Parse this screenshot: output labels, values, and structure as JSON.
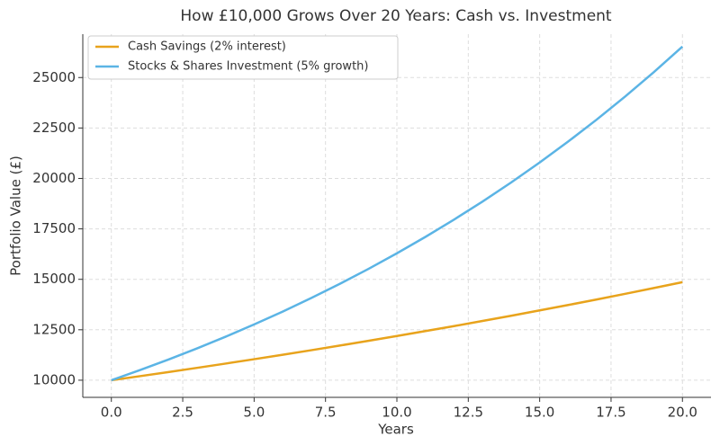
{
  "chart_data": {
    "type": "line",
    "title": "How £10,000 Grows Over 20 Years: Cash vs. Investment",
    "x_label": "Years",
    "y_label": "Portfolio Value (£)",
    "x": [
      0,
      1,
      2,
      3,
      4,
      5,
      6,
      7,
      8,
      9,
      10,
      11,
      12,
      13,
      14,
      15,
      16,
      17,
      18,
      19,
      20
    ],
    "series": [
      {
        "name": "Cash Savings (2% interest)",
        "color": "#e8a31c",
        "values": [
          10000,
          10200,
          10404,
          10612,
          10824,
          11041,
          11262,
          11487,
          11717,
          11951,
          12190,
          12434,
          12682,
          12936,
          13195,
          13459,
          13728,
          14002,
          14282,
          14568,
          14859
        ]
      },
      {
        "name": "Stocks & Shares Investment (5% growth)",
        "color": "#5bb4e5",
        "values": [
          10000,
          10500,
          11025,
          11576,
          12155,
          12763,
          13401,
          14071,
          14775,
          15513,
          16289,
          17103,
          17959,
          18856,
          19799,
          20789,
          21829,
          22920,
          24066,
          25270,
          26533
        ]
      }
    ],
    "xlim": [
      -1,
      21
    ],
    "xticks": [
      {
        "value": 0,
        "label": "0.0"
      },
      2.5,
      {
        "value": 5,
        "label": "5.0"
      },
      7.5,
      {
        "value": 10,
        "label": "10.0"
      },
      12.5,
      {
        "value": 15,
        "label": "15.0"
      },
      17.5,
      {
        "value": 20,
        "label": "20.0"
      }
    ],
    "ylim": [
      9150,
      27150
    ],
    "yticks": [
      10000,
      12500,
      15000,
      17500,
      20000,
      22500,
      25000
    ],
    "grid": true,
    "legend": "upper-left"
  }
}
